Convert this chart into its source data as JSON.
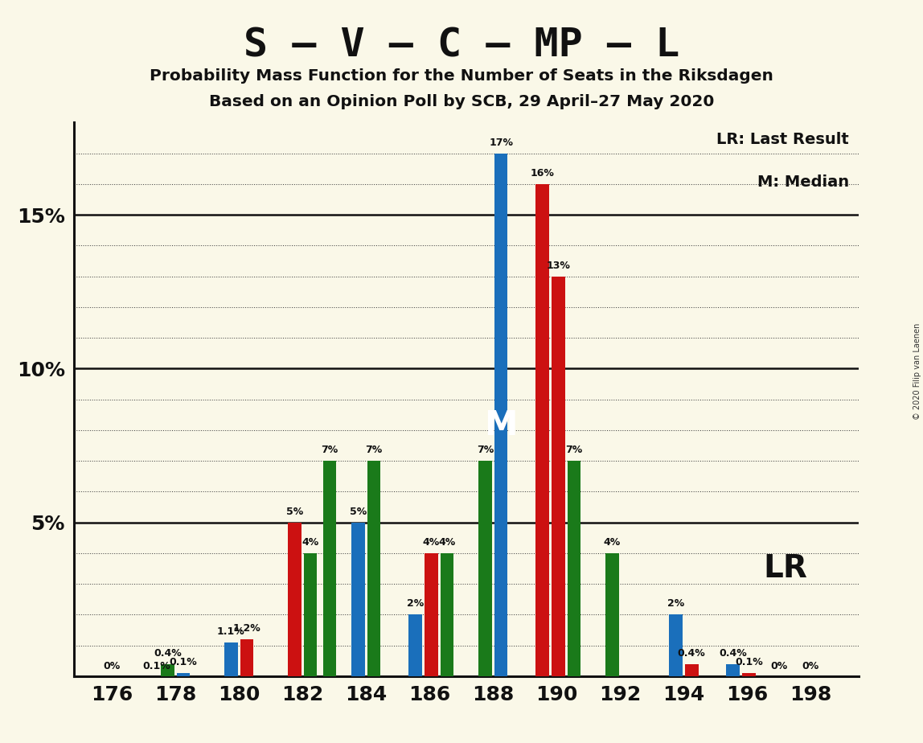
{
  "title": "S – V – C – MP – L",
  "subtitle1": "Probability Mass Function for the Number of Seats in the Riksdagen",
  "subtitle2": "Based on an Opinion Poll by SCB, 29 April–27 May 2020",
  "copyright": "© 2020 Filip van Laenen",
  "background_color": "#faf8e8",
  "x_ticks": [
    176,
    178,
    180,
    182,
    184,
    186,
    188,
    190,
    192,
    194,
    196,
    198
  ],
  "ylim": [
    0,
    18
  ],
  "blue_color": "#1a6fbb",
  "red_color": "#cc1111",
  "green_color": "#1a7a1a",
  "legend_lr": "LR: Last Result",
  "legend_m": "M: Median",
  "bars": [
    {
      "x": 177.75,
      "val": 0.4,
      "color": "green",
      "label": "0.4%"
    },
    {
      "x": 178.25,
      "val": 0.1,
      "color": "blue",
      "label": "0.1%"
    },
    {
      "x": 179.75,
      "val": 1.1,
      "color": "blue",
      "label": "1.1%"
    },
    {
      "x": 180.25,
      "val": 1.2,
      "color": "red",
      "label": "1.2%"
    },
    {
      "x": 181.75,
      "val": 5.0,
      "color": "red",
      "label": "5%"
    },
    {
      "x": 182.25,
      "val": 4.0,
      "color": "green",
      "label": "4%"
    },
    {
      "x": 182.85,
      "val": 7.0,
      "color": "green",
      "label": "7%"
    },
    {
      "x": 183.75,
      "val": 5.0,
      "color": "blue",
      "label": "5%"
    },
    {
      "x": 184.25,
      "val": 7.0,
      "color": "green",
      "label": "7%"
    },
    {
      "x": 185.55,
      "val": 2.0,
      "color": "blue",
      "label": "2%"
    },
    {
      "x": 186.05,
      "val": 4.0,
      "color": "red",
      "label": "4%"
    },
    {
      "x": 186.55,
      "val": 4.0,
      "color": "green",
      "label": "4%"
    },
    {
      "x": 187.75,
      "val": 7.0,
      "color": "green",
      "label": "7%"
    },
    {
      "x": 188.25,
      "val": 17.0,
      "color": "blue",
      "label": "17%"
    },
    {
      "x": 189.55,
      "val": 16.0,
      "color": "red",
      "label": "16%"
    },
    {
      "x": 190.05,
      "val": 13.0,
      "color": "red",
      "label": "13%"
    },
    {
      "x": 190.55,
      "val": 7.0,
      "color": "green",
      "label": "7%"
    },
    {
      "x": 191.75,
      "val": 4.0,
      "color": "green",
      "label": "4%"
    },
    {
      "x": 193.75,
      "val": 2.0,
      "color": "blue",
      "label": "2%"
    },
    {
      "x": 194.25,
      "val": 0.4,
      "color": "red",
      "label": "0.4%"
    },
    {
      "x": 195.55,
      "val": 0.4,
      "color": "blue",
      "label": "0.4%"
    },
    {
      "x": 196.05,
      "val": 0.1,
      "color": "red",
      "label": "0.1%"
    },
    {
      "x": 197.0,
      "val": 0.0,
      "color": "blue",
      "label": "0%"
    },
    {
      "x": 198.0,
      "val": 0.0,
      "color": "red",
      "label": "0%"
    }
  ],
  "zero_labels": [
    {
      "x": 176.0,
      "label": "0%"
    },
    {
      "x": 177.5,
      "label": "0.1%"
    }
  ],
  "M_bar_x": 188.25,
  "M_bar_val": 17.0,
  "LR_x": 196.5,
  "LR_y": 3.5
}
